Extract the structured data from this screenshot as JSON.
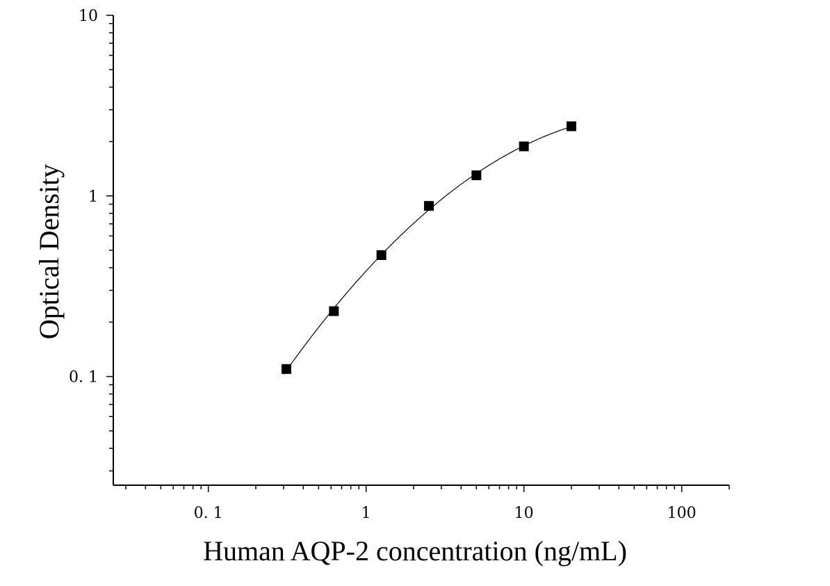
{
  "chart_data": {
    "type": "scatter",
    "title": "",
    "xlabel": "Human AQP-2 concentration (ng/mL)",
    "ylabel": "Optical Density",
    "x_scale": "log",
    "y_scale": "log",
    "xlim": [
      0.025,
      200
    ],
    "ylim": [
      0.025,
      10
    ],
    "x_ticks": [
      {
        "value": 0.1,
        "label": "0. 1"
      },
      {
        "value": 1,
        "label": "1"
      },
      {
        "value": 10,
        "label": "10"
      },
      {
        "value": 100,
        "label": "100"
      }
    ],
    "y_ticks": [
      {
        "value": 0.1,
        "label": "0. 1"
      },
      {
        "value": 1,
        "label": "1"
      },
      {
        "value": 10,
        "label": "10"
      }
    ],
    "grid": false,
    "legend": "none",
    "series": [
      {
        "marker": "square",
        "color": "#000000",
        "x": [
          0.3125,
          0.625,
          1.25,
          2.5,
          5,
          10,
          20
        ],
        "y": [
          0.11,
          0.23,
          0.47,
          0.88,
          1.3,
          1.88,
          2.43
        ]
      }
    ],
    "fit_curve": {
      "color": "#000000",
      "x_range": [
        0.3,
        20
      ]
    }
  }
}
